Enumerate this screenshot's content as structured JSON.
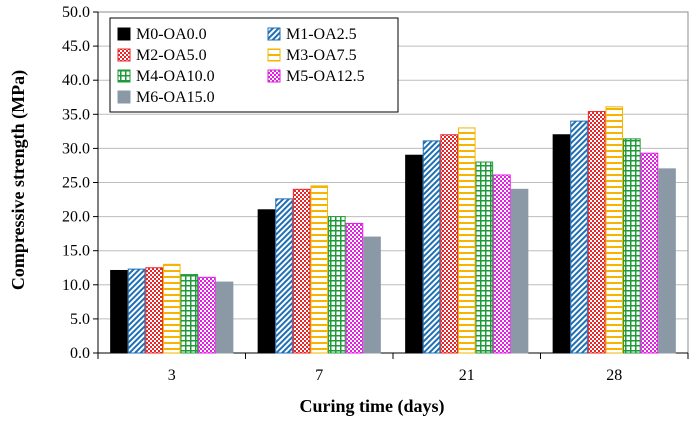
{
  "chart_data": {
    "type": "bar",
    "xlabel": "Curing time (days)",
    "ylabel": "Compressive strength (MPa)",
    "ylim": [
      0,
      50
    ],
    "yticks": [
      "0.0",
      "5.0",
      "10.0",
      "15.0",
      "20.0",
      "25.0",
      "30.0",
      "35.0",
      "40.0",
      "45.0",
      "50.0"
    ],
    "categories": [
      "3",
      "7",
      "21",
      "28"
    ],
    "grid": true,
    "legend_position": "top-left",
    "series": [
      {
        "name": "M0-OA0.0",
        "values": [
          12.1,
          21.0,
          29.0,
          32.0
        ],
        "color": "#000000",
        "pattern": "solid"
      },
      {
        "name": "M1-OA2.5",
        "values": [
          12.3,
          22.6,
          31.1,
          34.0
        ],
        "color": "#1f6fb5",
        "pattern": "diagonal"
      },
      {
        "name": "M2-OA5.0",
        "values": [
          12.5,
          24.0,
          32.0,
          35.4
        ],
        "color": "#e8262a",
        "pattern": "checker"
      },
      {
        "name": "M3-OA7.5",
        "values": [
          13.0,
          24.5,
          33.0,
          36.1
        ],
        "color": "#f4b400",
        "pattern": "hstripe"
      },
      {
        "name": "M4-OA10.0",
        "values": [
          11.5,
          20.0,
          28.0,
          31.4
        ],
        "color": "#1f9a3a",
        "pattern": "grid"
      },
      {
        "name": "M5-OA12.5",
        "values": [
          11.1,
          19.0,
          26.1,
          29.3
        ],
        "color": "#e21ee2",
        "pattern": "checker"
      },
      {
        "name": "M6-OA15.0",
        "values": [
          10.4,
          17.0,
          24.0,
          27.0
        ],
        "color": "#8b99a6",
        "pattern": "solid"
      }
    ]
  }
}
